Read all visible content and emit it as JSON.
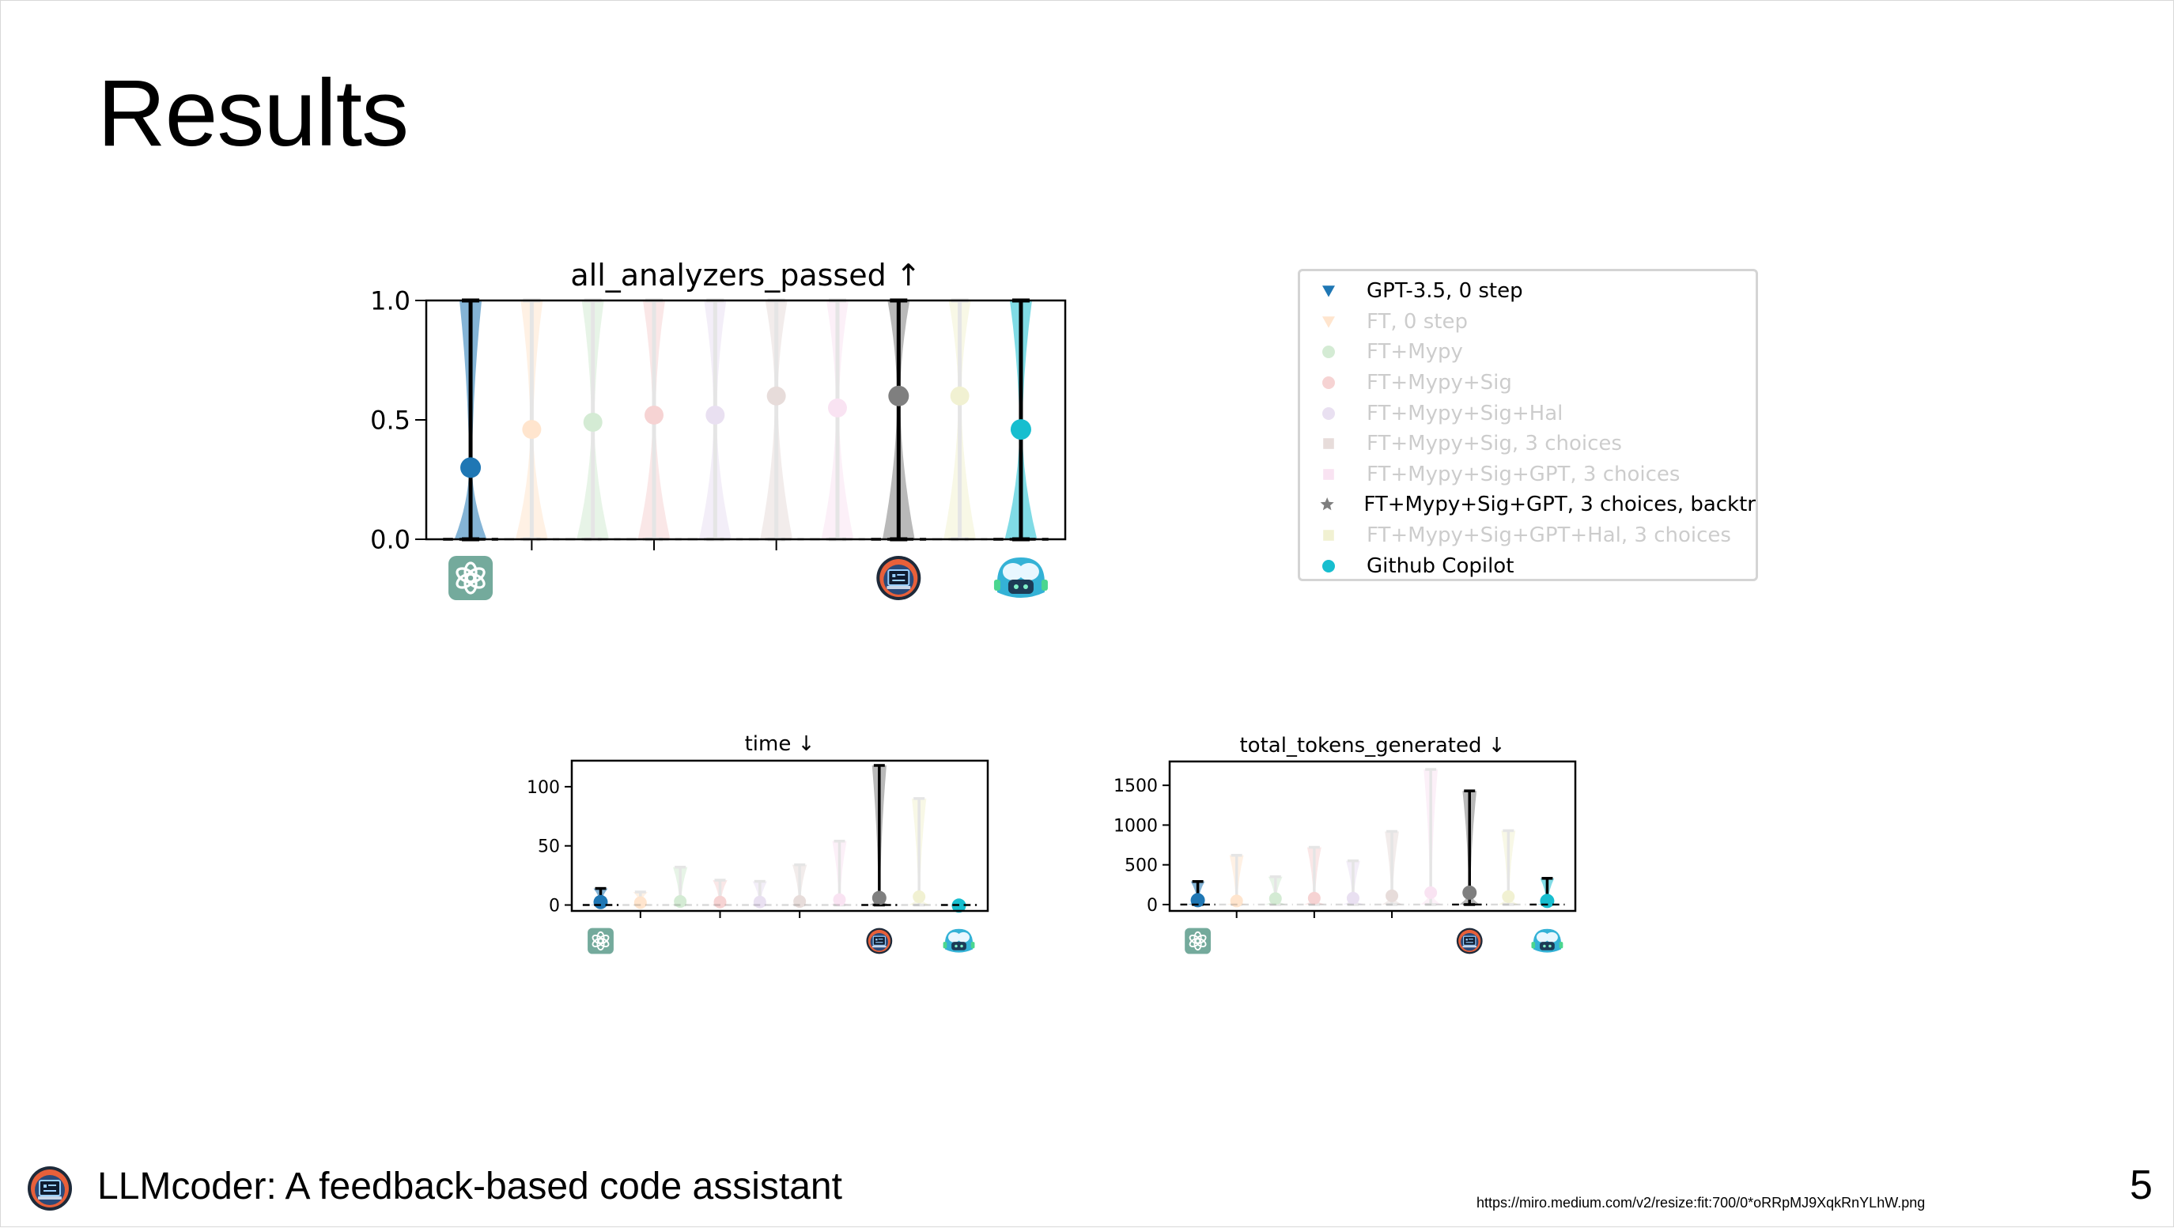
{
  "slide": {
    "title": "Results",
    "footer_text": "LLMcoder: A feedback-based code assistant",
    "source_url": "https://miro.medium.com/v2/resize:fit:700/0*oRRpMJ9XqkRnYLhW.png",
    "page_number": "5"
  },
  "legend": [
    {
      "label": "GPT-3.5, 0 step",
      "color": "#1f77b4",
      "marker": "triangle-down",
      "faded": false
    },
    {
      "label": "FT, 0 step",
      "color": "#ff7f0e",
      "marker": "triangle-down",
      "faded": true
    },
    {
      "label": "FT+Mypy",
      "color": "#2ca02c",
      "marker": "circle",
      "faded": true
    },
    {
      "label": "FT+Mypy+Sig",
      "color": "#d62728",
      "marker": "circle",
      "faded": true
    },
    {
      "label": "FT+Mypy+Sig+Hal",
      "color": "#9467bd",
      "marker": "circle",
      "faded": true
    },
    {
      "label": "FT+Mypy+Sig, 3 choices",
      "color": "#8c564b",
      "marker": "square",
      "faded": true
    },
    {
      "label": "FT+Mypy+Sig+GPT, 3 choices",
      "color": "#e377c2",
      "marker": "square",
      "faded": true
    },
    {
      "label": "FT+Mypy+Sig+GPT, 3 choices, backtr",
      "color": "#7f7f7f",
      "marker": "star",
      "faded": false
    },
    {
      "label": "FT+Mypy+Sig+GPT+Hal, 3 choices",
      "color": "#bcbd22",
      "marker": "square",
      "faded": true
    },
    {
      "label": "Github Copilot",
      "color": "#17becf",
      "marker": "circle",
      "faded": false
    }
  ],
  "chart_data": [
    {
      "type": "violin",
      "title": "all_analyzers_passed ↑",
      "xlabel": "",
      "ylabel": "",
      "ylim": [
        0,
        1.0
      ],
      "yticks": [
        "0.0",
        "0.5",
        "1.0"
      ],
      "categories": [
        "GPT-3.5, 0 step",
        "FT, 0 step",
        "FT+Mypy",
        "FT+Mypy+Sig",
        "FT+Mypy+Sig+Hal",
        "FT+Mypy+Sig, 3 choices",
        "FT+Mypy+Sig+GPT, 3 choices",
        "FT+Mypy+Sig+GPT, 3 choices, backtr",
        "FT+Mypy+Sig+GPT+Hal, 3 choices",
        "Github Copilot"
      ],
      "series": [
        {
          "mean": 0.3,
          "min": 0,
          "max": 1.0
        },
        {
          "mean": 0.46,
          "min": 0,
          "max": 1.0
        },
        {
          "mean": 0.49,
          "min": 0,
          "max": 1.0
        },
        {
          "mean": 0.52,
          "min": 0,
          "max": 1.0
        },
        {
          "mean": 0.52,
          "min": 0,
          "max": 1.0
        },
        {
          "mean": 0.6,
          "min": 0,
          "max": 1.0
        },
        {
          "mean": 0.55,
          "min": 0,
          "max": 1.0
        },
        {
          "mean": 0.6,
          "min": 0,
          "max": 1.0
        },
        {
          "mean": 0.6,
          "min": 0,
          "max": 1.0
        },
        {
          "mean": 0.46,
          "min": 0,
          "max": 1.0
        }
      ],
      "dashed_baseline": 0,
      "grid": false
    },
    {
      "type": "violin",
      "title": "time ↓",
      "xlabel": "",
      "ylabel": "",
      "ylim": [
        -5,
        122
      ],
      "yticks": [
        "0",
        "50",
        "100"
      ],
      "categories": [
        "GPT-3.5, 0 step",
        "FT, 0 step",
        "FT+Mypy",
        "FT+Mypy+Sig",
        "FT+Mypy+Sig+Hal",
        "FT+Mypy+Sig, 3 choices",
        "FT+Mypy+Sig+GPT, 3 choices",
        "FT+Mypy+Sig+GPT, 3 choices, backtr",
        "FT+Mypy+Sig+GPT+Hal, 3 choices",
        "Github Copilot"
      ],
      "series": [
        {
          "mean": 2.5,
          "min": 0,
          "max": 14
        },
        {
          "mean": 2,
          "min": 0,
          "max": 11
        },
        {
          "mean": 3,
          "min": 0,
          "max": 32
        },
        {
          "mean": 2.5,
          "min": 0,
          "max": 21
        },
        {
          "mean": 2.5,
          "min": 0,
          "max": 20
        },
        {
          "mean": 3,
          "min": 0,
          "max": 34
        },
        {
          "mean": 4.5,
          "min": 0,
          "max": 54
        },
        {
          "mean": 6,
          "min": 0,
          "max": 118
        },
        {
          "mean": 7,
          "min": 0,
          "max": 90
        },
        {
          "mean": -0.5,
          "min": -1,
          "max": 0
        }
      ],
      "dashed_baseline": 0,
      "grid": false
    },
    {
      "type": "violin",
      "title": "total_tokens_generated ↓",
      "xlabel": "",
      "ylabel": "",
      "ylim": [
        -80,
        1800
      ],
      "yticks": [
        "0",
        "500",
        "1000",
        "1500"
      ],
      "categories": [
        "GPT-3.5, 0 step",
        "FT, 0 step",
        "FT+Mypy",
        "FT+Mypy+Sig",
        "FT+Mypy+Sig+Hal",
        "FT+Mypy+Sig, 3 choices",
        "FT+Mypy+Sig+GPT, 3 choices",
        "FT+Mypy+Sig+GPT, 3 choices, backtr",
        "FT+Mypy+Sig+GPT+Hal, 3 choices",
        "Github Copilot"
      ],
      "series": [
        {
          "mean": 55,
          "min": 0,
          "max": 290
        },
        {
          "mean": 45,
          "min": 0,
          "max": 620
        },
        {
          "mean": 75,
          "min": 0,
          "max": 350
        },
        {
          "mean": 80,
          "min": 0,
          "max": 720
        },
        {
          "mean": 80,
          "min": 0,
          "max": 550
        },
        {
          "mean": 110,
          "min": 0,
          "max": 920
        },
        {
          "mean": 150,
          "min": 0,
          "max": 1700
        },
        {
          "mean": 150,
          "min": 0,
          "max": 1430
        },
        {
          "mean": 100,
          "min": 0,
          "max": 930
        },
        {
          "mean": 45,
          "min": 0,
          "max": 330
        }
      ],
      "dashed_baseline": 0,
      "grid": false
    }
  ],
  "icons": [
    "openai-logo-icon",
    "llmcoder-logo-icon",
    "copilot-logo-icon"
  ]
}
